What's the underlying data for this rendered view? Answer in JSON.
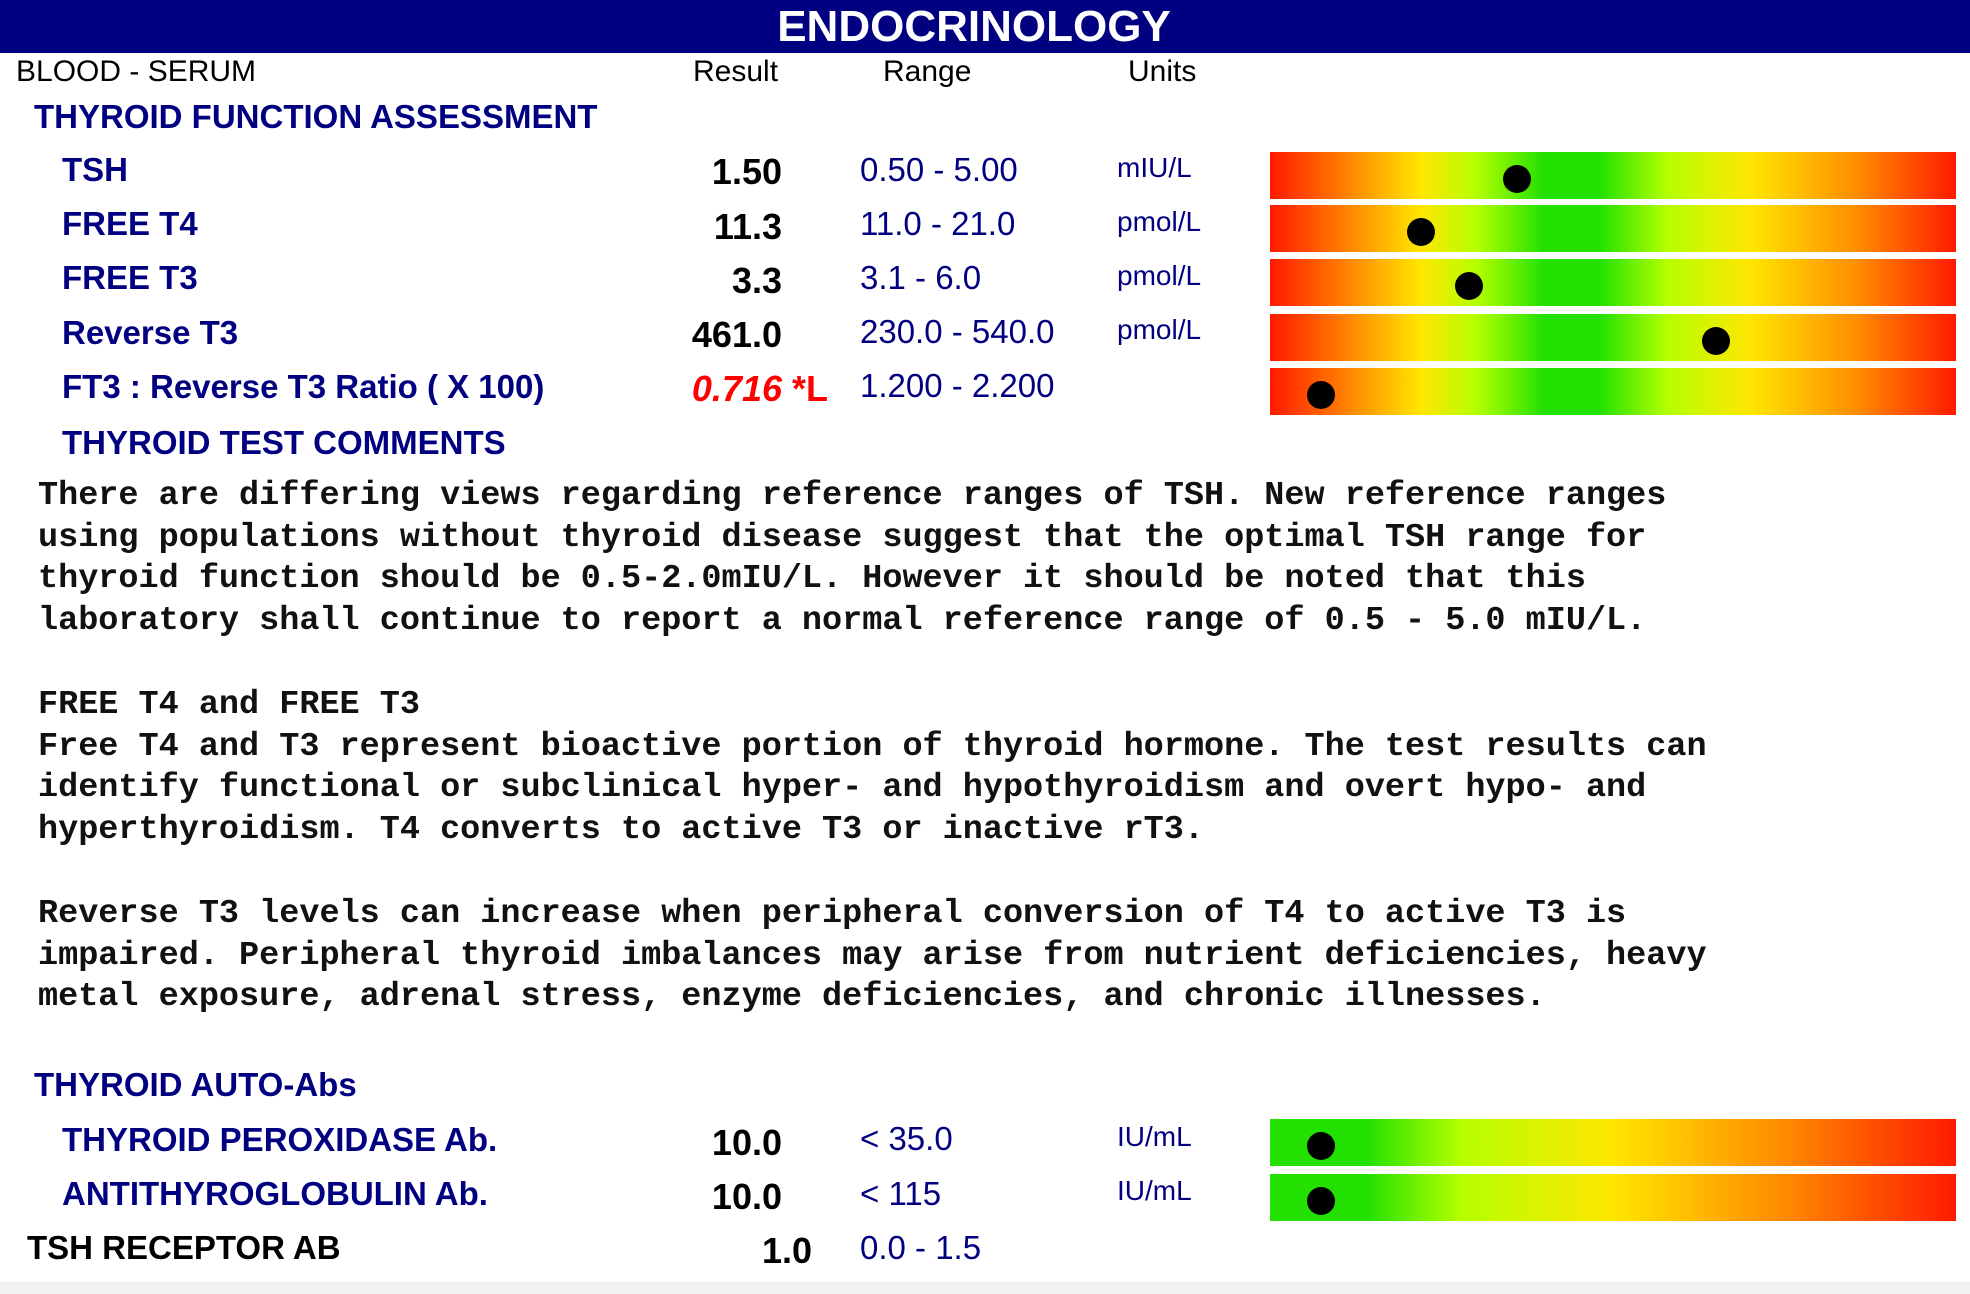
{
  "banner": {
    "title": "ENDOCRINOLOGY"
  },
  "header": {
    "specimen": "BLOOD - SERUM",
    "result": "Result",
    "range": "Range",
    "units": "Units"
  },
  "sections": {
    "thyroid_function": "THYROID FUNCTION ASSESSMENT",
    "thyroid_comments": "THYROID TEST COMMENTS",
    "thyroid_autoabs": "THYROID AUTO-Abs"
  },
  "tests": [
    {
      "name": "TSH",
      "result": "1.50",
      "flag": "",
      "range": "0.50 - 5.00",
      "units": "mIU/L",
      "indicator": 0.36,
      "scale": "low-high"
    },
    {
      "name": "FREE T4",
      "result": "11.3",
      "flag": "",
      "range": "11.0 - 21.0",
      "units": "pmol/L",
      "indicator": 0.22,
      "scale": "low-high"
    },
    {
      "name": "FREE T3",
      "result": "3.3",
      "flag": "",
      "range": "3.1 - 6.0",
      "units": "pmol/L",
      "indicator": 0.29,
      "scale": "low-high"
    },
    {
      "name": "Reverse T3",
      "result": "461.0",
      "flag": "",
      "range": "230.0 - 540.0",
      "units": "pmol/L",
      "indicator": 0.65,
      "scale": "low-high"
    },
    {
      "name": "FT3 : Reverse T3 Ratio ( X 100)",
      "result": "0.716",
      "flag": "*L",
      "range": "1.200 - 2.200",
      "units": "",
      "indicator": 0.075,
      "scale": "low-high"
    }
  ],
  "comments": [
    "There are differing views regarding reference ranges of TSH. New reference ranges\nusing populations without thyroid disease suggest that the optimal TSH range for\nthyroid function should be 0.5-2.0mIU/L. However it should be noted that this\nlaboratory shall continue to report a normal reference range of 0.5 - 5.0 mIU/L.",
    "FREE T4 and FREE T3\nFree T4 and T3 represent bioactive portion of thyroid hormone. The test results can\nidentify functional or subclinical hyper- and hypothyroidism and overt hypo- and\nhyperthyroidism. T4 converts to active T3 or inactive rT3.",
    "Reverse T3 levels can increase when peripheral conversion of T4 to active T3 is\nimpaired. Peripheral thyroid imbalances may arise from nutrient deficiencies, heavy\nmetal exposure, adrenal stress, enzyme deficiencies, and chronic illnesses."
  ],
  "autoabs": [
    {
      "name": "THYROID PEROXIDASE Ab.",
      "result": "10.0",
      "range": "< 35.0",
      "units": "IU/mL",
      "indicator": 0.075,
      "scale": "green-red"
    },
    {
      "name": "ANTITHYROGLOBULIN Ab.",
      "result": "10.0",
      "range": "< 115",
      "units": "IU/mL",
      "indicator": 0.075,
      "scale": "green-red"
    }
  ],
  "tsh_receptor": {
    "name": "TSH RECEPTOR AB",
    "result": "1.0",
    "range": "0.0 - 1.5"
  }
}
